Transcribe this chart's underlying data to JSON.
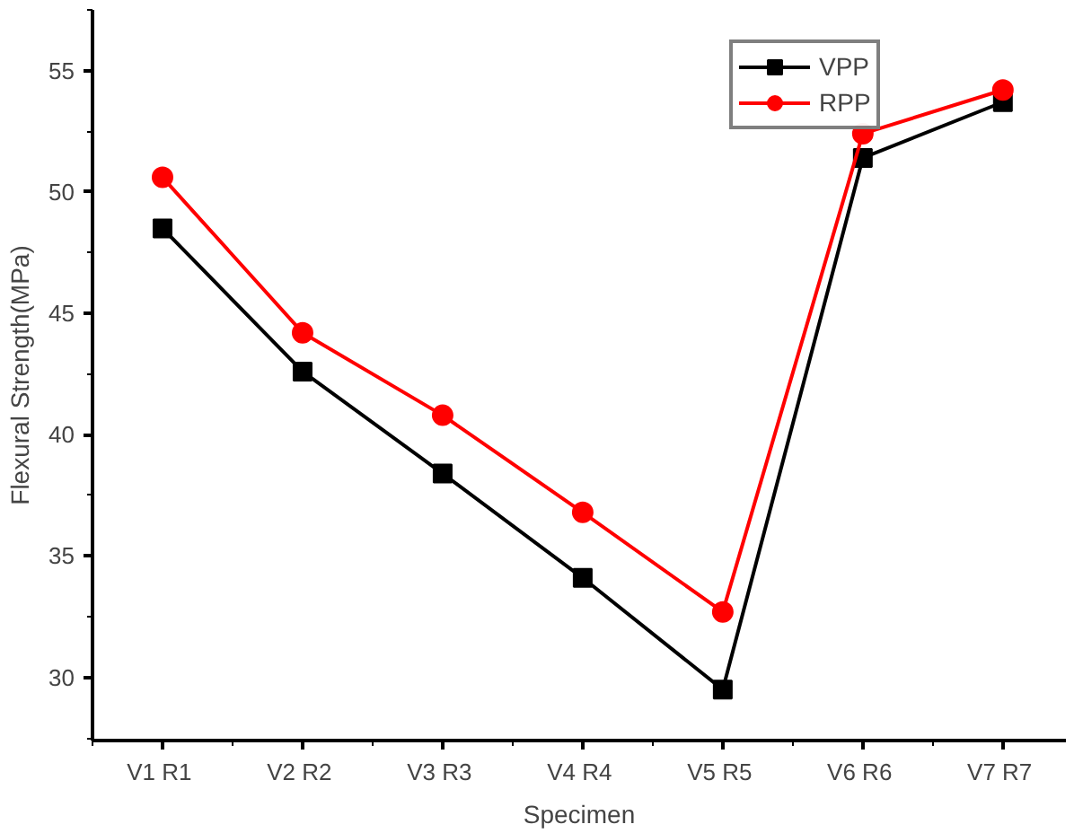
{
  "chart_data": {
    "type": "line",
    "xlabel": "Specimen",
    "ylabel": "Flexural Strength(MPa)",
    "categories": [
      "V1  R1",
      "V2  R2",
      "V3  R3",
      "V4  R4",
      "V5  R5",
      "V6  R6",
      "V7  R7"
    ],
    "series": [
      {
        "name": "VPP",
        "color": "#000000",
        "marker": "square",
        "values": [
          48.5,
          42.6,
          38.4,
          34.1,
          29.5,
          51.4,
          53.7
        ]
      },
      {
        "name": "RPP",
        "color": "#ff0000",
        "marker": "circle",
        "values": [
          50.6,
          44.2,
          40.8,
          36.8,
          32.7,
          52.4,
          54.2
        ]
      }
    ],
    "ylim": [
      27.4,
      57.5
    ],
    "yticks": [
      30,
      35,
      40,
      45,
      50,
      55
    ],
    "grid": false,
    "legend": "top right",
    "line_style": "solid"
  }
}
